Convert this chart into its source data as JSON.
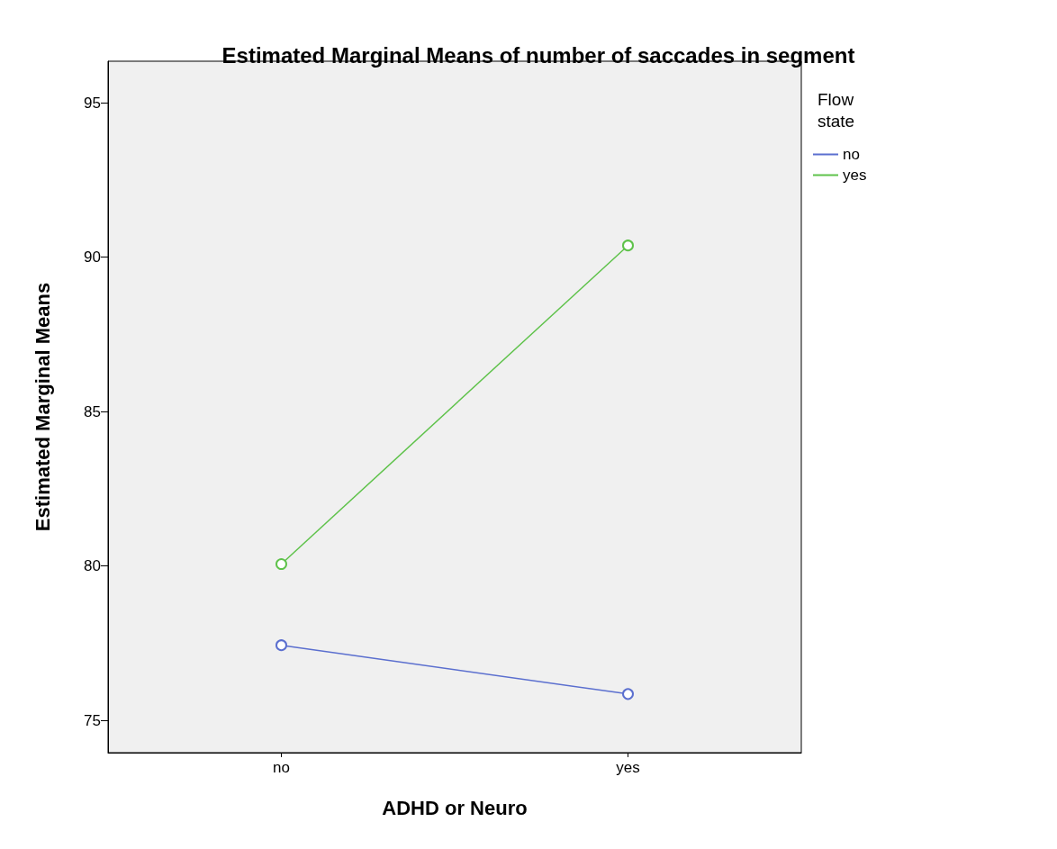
{
  "chart_data": {
    "type": "line",
    "title": "Estimated Marginal Means of number of saccades in segment",
    "xlabel": "ADHD or Neuro",
    "ylabel": "Estimated Marginal Means",
    "legend_title": "Flow state",
    "categories": [
      "no",
      "yes"
    ],
    "series": [
      {
        "name": "no",
        "color": "#5b6fcf",
        "values": [
          77.43,
          75.85
        ]
      },
      {
        "name": "yes",
        "color": "#5ec24a",
        "values": [
          80.06,
          90.38
        ]
      }
    ],
    "ylim": [
      73.95,
      96.35
    ],
    "yticks": [
      75,
      80,
      85,
      90,
      95
    ],
    "grid": false,
    "legend": "top right",
    "marker": "circle",
    "line_style": "solid"
  }
}
